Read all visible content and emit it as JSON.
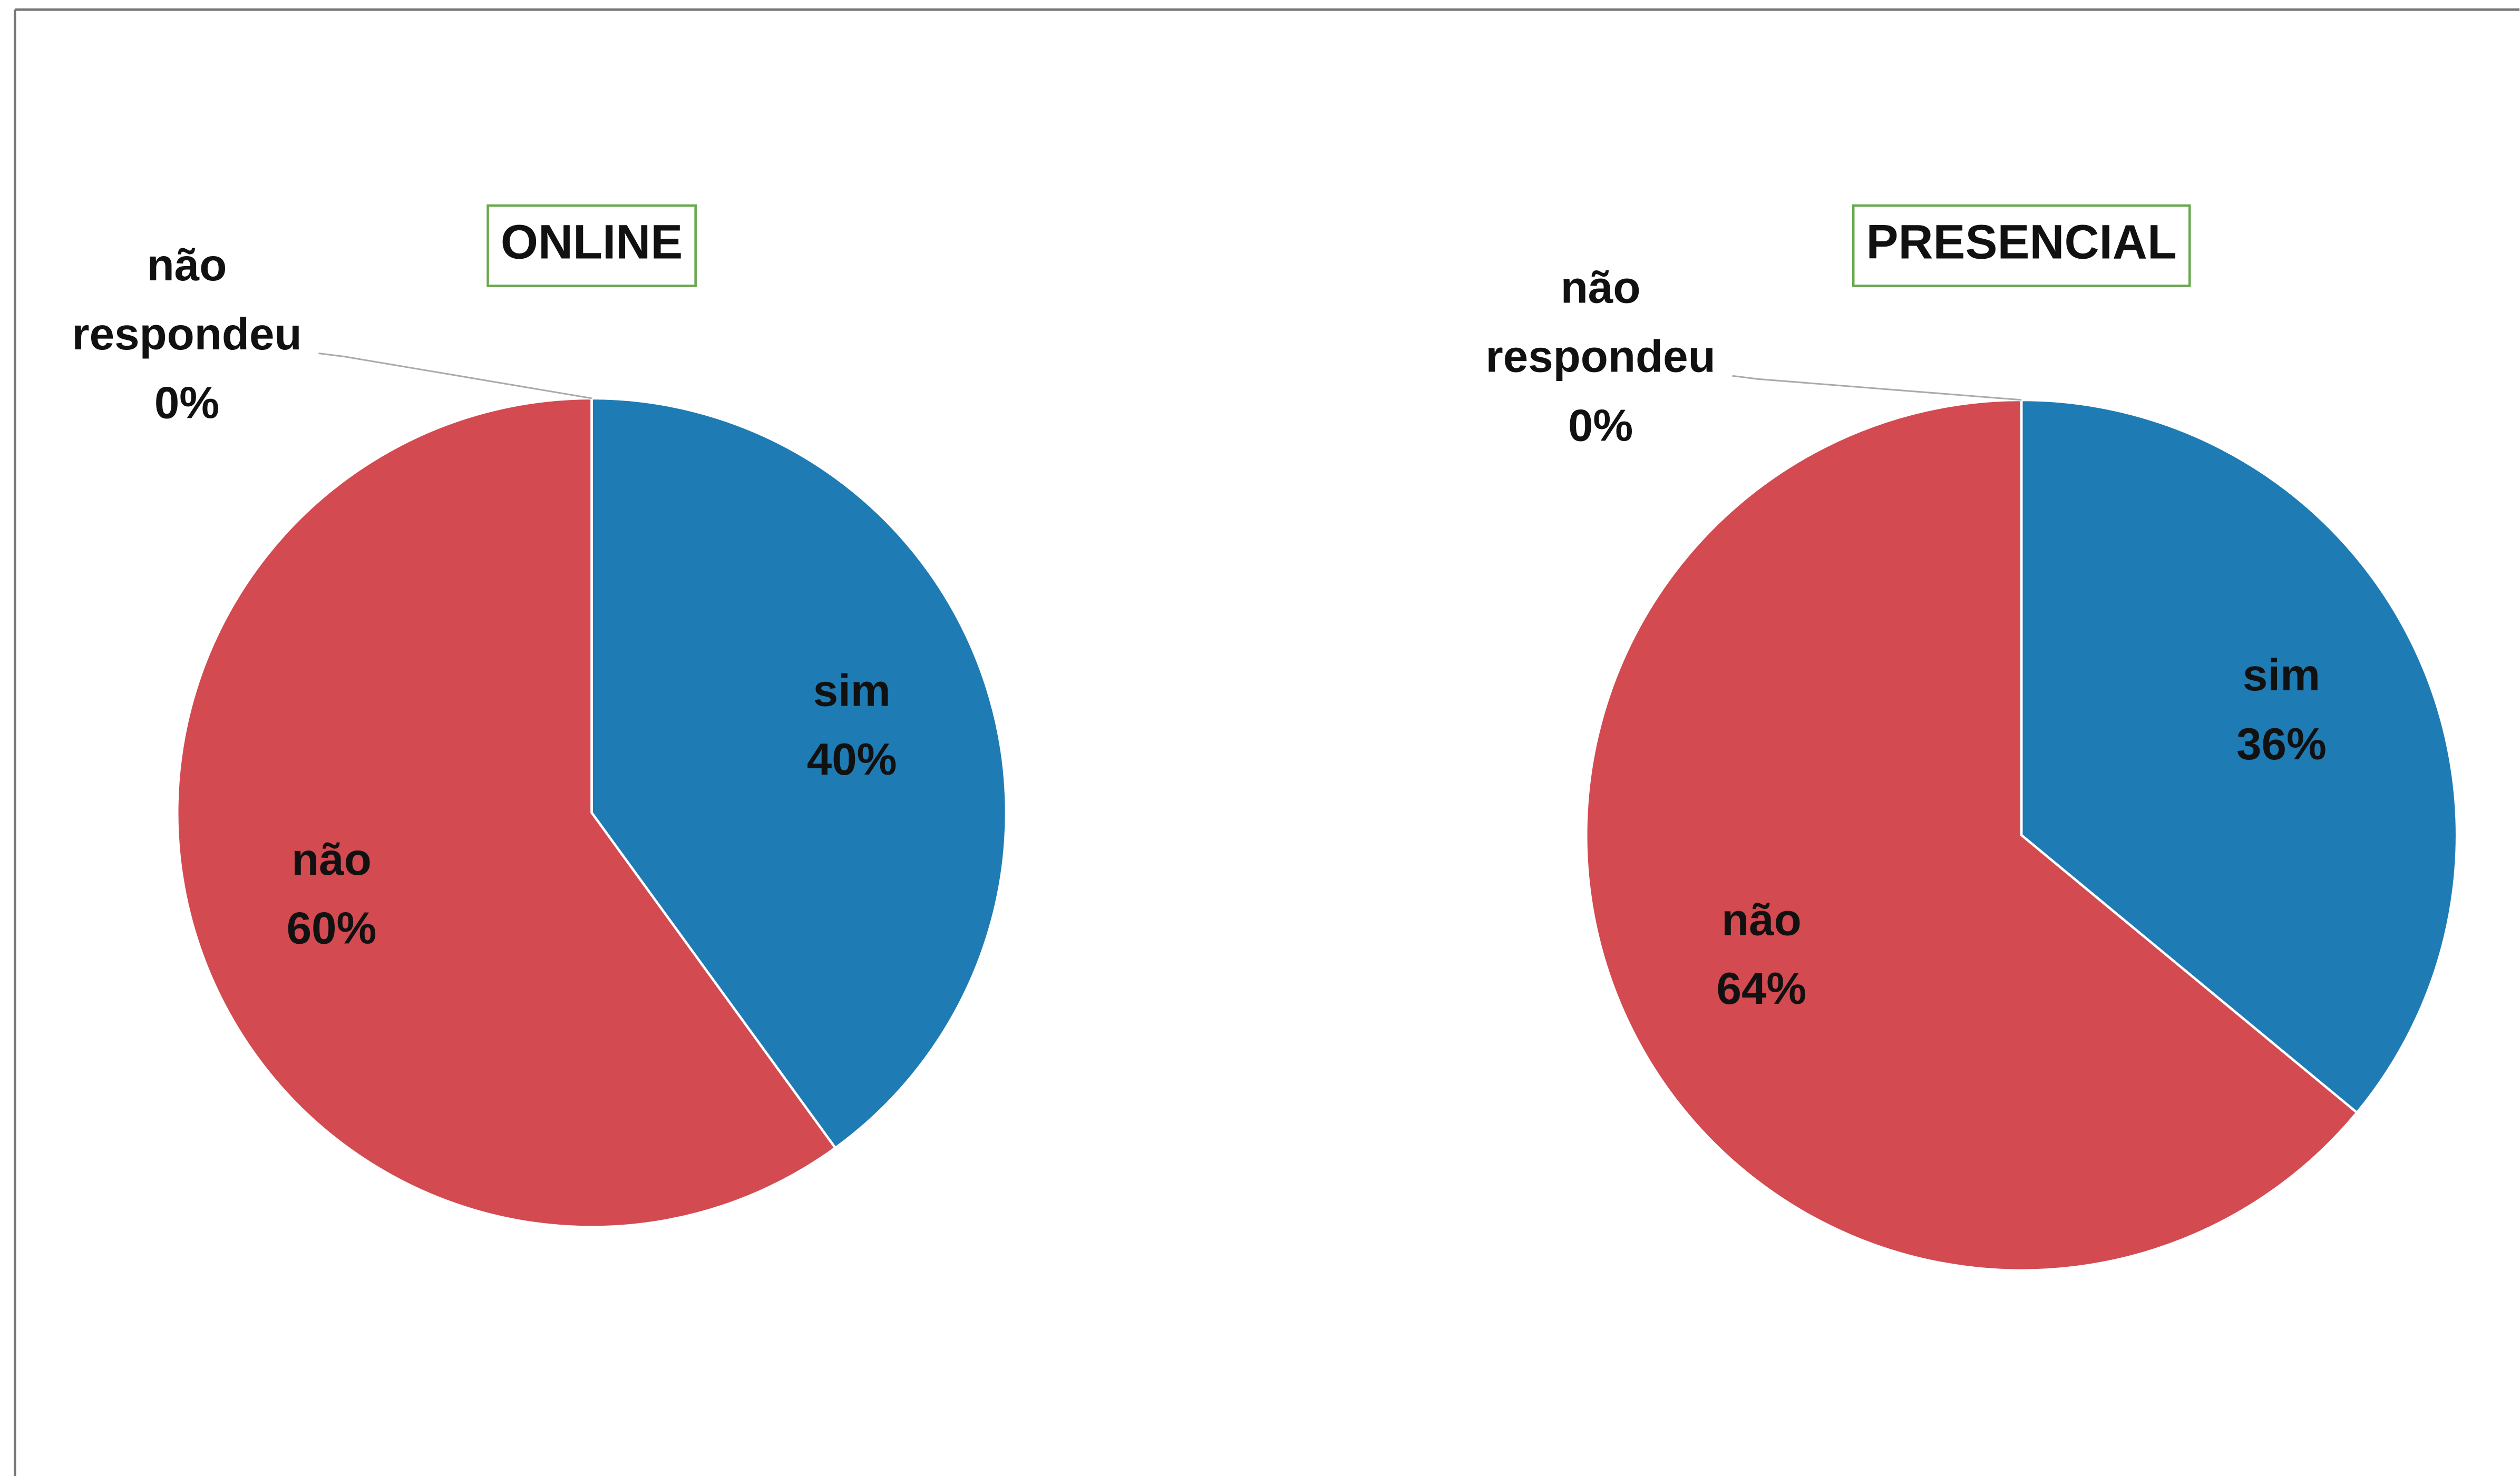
{
  "chart_data": [
    {
      "type": "pie",
      "title": "ONLINE",
      "categories": [
        "sim",
        "não",
        "não respondeu"
      ],
      "values": [
        40,
        60,
        0
      ],
      "value_labels": [
        "40%",
        "60%",
        "0%"
      ],
      "colors": [
        "#1f7bb4",
        "#d34a51",
        "#8fb34a"
      ]
    },
    {
      "type": "pie",
      "title": "PRESENCIAL",
      "categories": [
        "sim",
        "não",
        "não respondeu"
      ],
      "values": [
        36,
        64,
        0
      ],
      "value_labels": [
        "36%",
        "64%",
        "0%"
      ],
      "colors": [
        "#1f7bb4",
        "#d34a51",
        "#8fb34a"
      ]
    }
  ]
}
